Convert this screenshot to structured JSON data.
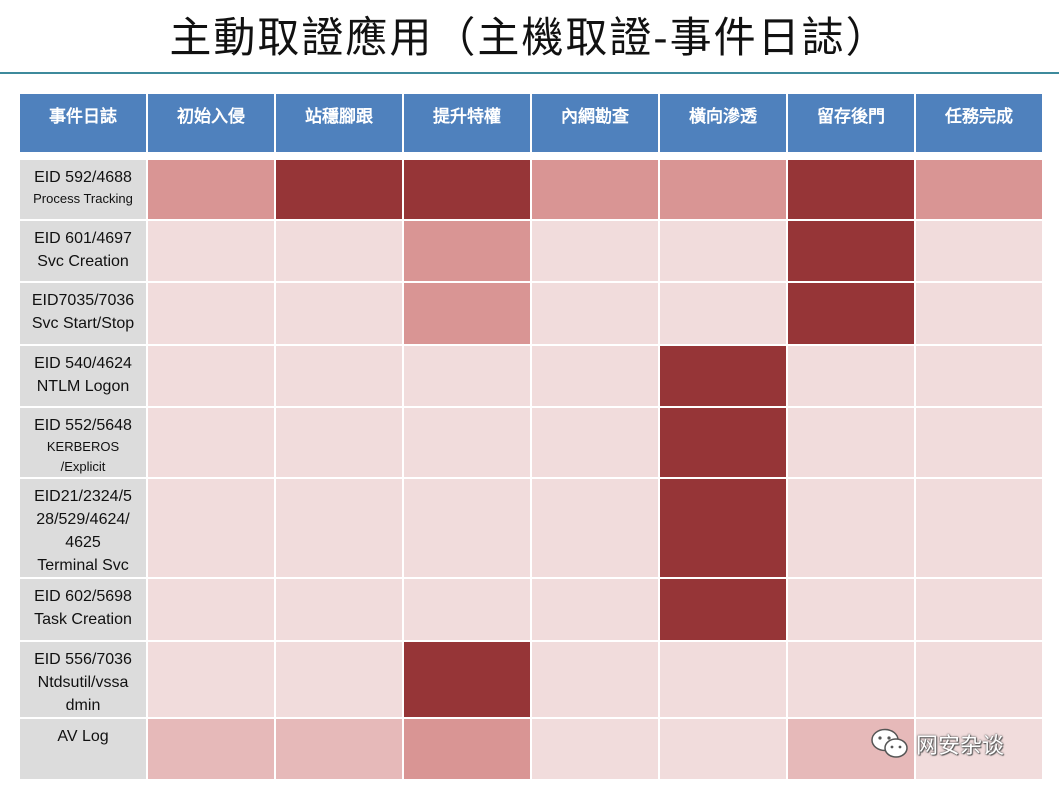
{
  "title": "主動取證應用（主機取證-事件日誌）",
  "columns": [
    "事件日誌",
    "初始入侵",
    "站穩腳跟",
    "提升特權",
    "內網勘查",
    "橫向滲透",
    "留存後門",
    "任務完成"
  ],
  "rows": [
    {
      "lines": [
        "EID 592/4688",
        "Process Tracking"
      ],
      "small": [
        false,
        true
      ],
      "levels": [
        2,
        3,
        3,
        2,
        2,
        3,
        2
      ]
    },
    {
      "lines": [
        "EID 601/4697",
        "Svc Creation"
      ],
      "small": [
        false,
        false
      ],
      "levels": [
        0,
        0,
        2,
        0,
        0,
        3,
        0
      ]
    },
    {
      "lines": [
        "EID7035/7036",
        "Svc Start/Stop"
      ],
      "small": [
        false,
        false
      ],
      "levels": [
        0,
        0,
        2,
        0,
        0,
        3,
        0
      ]
    },
    {
      "lines": [
        "EID 540/4624",
        "NTLM Logon"
      ],
      "small": [
        false,
        false
      ],
      "levels": [
        0,
        0,
        0,
        0,
        3,
        0,
        0
      ]
    },
    {
      "lines": [
        "EID 552/5648",
        "KERBEROS",
        "/Explicit"
      ],
      "small": [
        false,
        true,
        true
      ],
      "levels": [
        0,
        0,
        0,
        0,
        3,
        0,
        0
      ]
    },
    {
      "lines": [
        "EID21/2324/5",
        "28/529/4624/",
        "4625",
        "Terminal Svc"
      ],
      "small": [
        false,
        false,
        false,
        false
      ],
      "levels": [
        0,
        0,
        0,
        0,
        3,
        0,
        0
      ]
    },
    {
      "lines": [
        "EID 602/5698",
        "Task Creation"
      ],
      "small": [
        false,
        false
      ],
      "levels": [
        0,
        0,
        0,
        0,
        3,
        0,
        0
      ]
    },
    {
      "lines": [
        "EID 556/7036",
        "Ntdsutil/vssa",
        "dmin"
      ],
      "small": [
        false,
        false,
        false
      ],
      "levels": [
        0,
        0,
        3,
        0,
        0,
        0,
        0
      ]
    },
    {
      "lines": [
        "AV Log"
      ],
      "small": [
        false
      ],
      "levels": [
        1,
        1,
        2,
        0,
        0,
        1,
        0
      ]
    }
  ],
  "heat_colors": [
    "#f1dcdc",
    "#e6b9b9",
    "#d99594",
    "#963537"
  ],
  "header_color": "#4f81bd",
  "watermark": {
    "icon": "wechat-icon",
    "text": "网安杂谈"
  }
}
